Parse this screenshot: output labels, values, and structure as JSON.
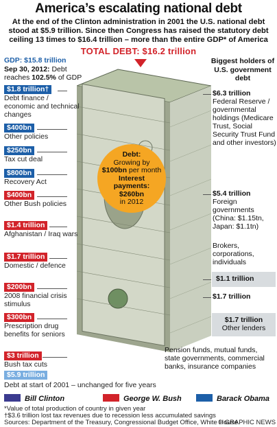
{
  "title": "America’s escalating national debt",
  "intro": "At the end of the Clinton administration in 2001 the U.S. national debt stood at $5.9 trillion. Since then Congress has raised the statutory debt ceiling 13 times to $16.4 trillion – more than the entire GDP* of America",
  "total_debt": "TOTAL DEBT: $16.2 trillion",
  "gdp": {
    "line1": "GDP: $15.8 trillion",
    "line2": "Sep 30, 2012:",
    "line2b": "Debt",
    "line3a": "reaches",
    "line3b": "102.5%",
    "line3c": "of GDP"
  },
  "holders_title": "Biggest holders of U.S. government debt",
  "left_items": [
    {
      "amount": "$1.8 trillion†",
      "label": "Debt finance / economic and technical changes",
      "color": "blue"
    },
    {
      "amount": "$400bn",
      "label": "Other policies",
      "color": "blue"
    },
    {
      "amount": "$250bn",
      "label": "Tax cut deal",
      "color": "blue"
    },
    {
      "amount": "$800bn",
      "label": "Recovery Act",
      "color": "blue"
    },
    {
      "amount": "$400bn",
      "label": "Other Bush policies",
      "color": "red"
    },
    {
      "amount": "$1.4 trillion",
      "label": "Afghanistan / Iraq wars",
      "color": "red"
    },
    {
      "amount": "$1.7 trillion",
      "label": "Domestic / defence",
      "color": "red"
    },
    {
      "amount": "$200bn",
      "label": "2008 financial crisis stimulus",
      "color": "red"
    },
    {
      "amount": "$300bn",
      "label": "Prescription drug benefits for seniors",
      "color": "red"
    },
    {
      "amount": "$3 trillion",
      "label": "Bush tax cuts",
      "color": "red"
    },
    {
      "amount": "$5.9 trillion",
      "label": "",
      "color": "lblue"
    }
  ],
  "base_note": "Debt at start of 2001 – unchanged for five years",
  "circle": {
    "l1": "Debt:",
    "l2": "Growing by",
    "l3": "$100bn",
    "l3b": "per month",
    "l4": "Interest",
    "l5": "payments:",
    "l6": "$260bn",
    "l7": "in 2012"
  },
  "right_items": {
    "fed_amount": "$6.3 trillion",
    "fed_label": "Federal Reserve / governmental holdings (Medicare Trust, Social Security Trust Fund and other investors)",
    "foreign_amount": "$5.4 trillion",
    "foreign_label": "Foreign governments (China: $1.15tn, Japan: $1.1tn)",
    "brokers_label": "Brokers, corporations, individuals",
    "brokers_amount": "$1.1 trillion",
    "pension_amount": "$1.7 trillion",
    "other_amount": "$1.7 trillion",
    "other_label": "Other lenders",
    "pension_label": "Pension funds, mutual funds, state governments, commercial banks, insurance companies"
  },
  "legend": [
    {
      "name": "Bill Clinton",
      "color": "#3b3b8f"
    },
    {
      "name": "George W. Bush",
      "color": "#d2232a"
    },
    {
      "name": "Barack Obama",
      "color": "#1d5fa8"
    }
  ],
  "footnotes": [
    "*Value of total production of country in given year",
    "†$3.6 trillion lost tax revenues due to recession less accumulated savings",
    "Sources: Department of the Treasury, Congressional Budget Office, White House",
    "© GRAPHIC NEWS"
  ],
  "colors": {
    "red": "#d2232a",
    "blue": "#1d5fa8",
    "orange": "#f5a623",
    "grey": "#d8dcdf"
  }
}
